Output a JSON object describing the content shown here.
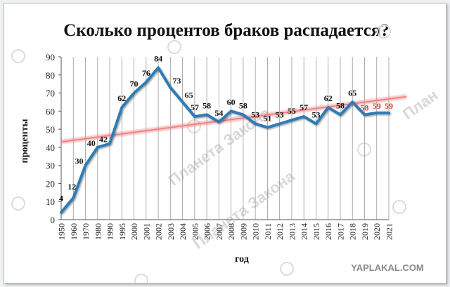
{
  "watermark": {
    "text": "Планета Закона",
    "partial_text": "План",
    "site_label": "YAPLAKAL.COM"
  },
  "colors": {
    "line": "#2e7bb5",
    "trend": "#f08080",
    "label_default": "#111111",
    "label_red": "#e53935",
    "grid": "#9a9a9a"
  },
  "chart_data": {
    "type": "line",
    "title": "Сколько процентов браков распадается?",
    "xlabel": "год",
    "ylabel": "проценты",
    "ylim": [
      0,
      90
    ],
    "yticks": [
      0,
      10,
      20,
      30,
      40,
      50,
      60,
      70,
      80,
      90
    ],
    "grid": "vertical lines at each year",
    "categories": [
      "1950",
      "1960",
      "1970",
      "1980",
      "1990",
      "1995",
      "2000",
      "2001",
      "2002",
      "2003",
      "2004",
      "2005",
      "2006",
      "2007",
      "2008",
      "2009",
      "2010",
      "2011",
      "2012",
      "2013",
      "2014",
      "2015",
      "2016",
      "2017",
      "2018",
      "2019",
      "2020",
      "2021"
    ],
    "values": [
      4,
      12,
      30,
      40,
      42,
      62,
      70,
      76,
      84,
      73,
      65,
      57,
      58,
      54,
      60,
      58,
      53,
      51,
      53,
      55,
      57,
      53,
      62,
      58,
      65,
      58,
      59,
      59
    ],
    "labels": [
      "4",
      "12",
      "30",
      "40",
      "42",
      "62",
      "70",
      "76",
      "84",
      "73",
      "65",
      "57",
      "58",
      "54",
      "60",
      "58",
      "53",
      "51",
      "53",
      "55",
      "57",
      "53",
      "62",
      "58",
      "65",
      "58",
      "59",
      "59"
    ],
    "red_labels_from_index": 25,
    "trendline": {
      "start": 43,
      "end": 68
    }
  }
}
